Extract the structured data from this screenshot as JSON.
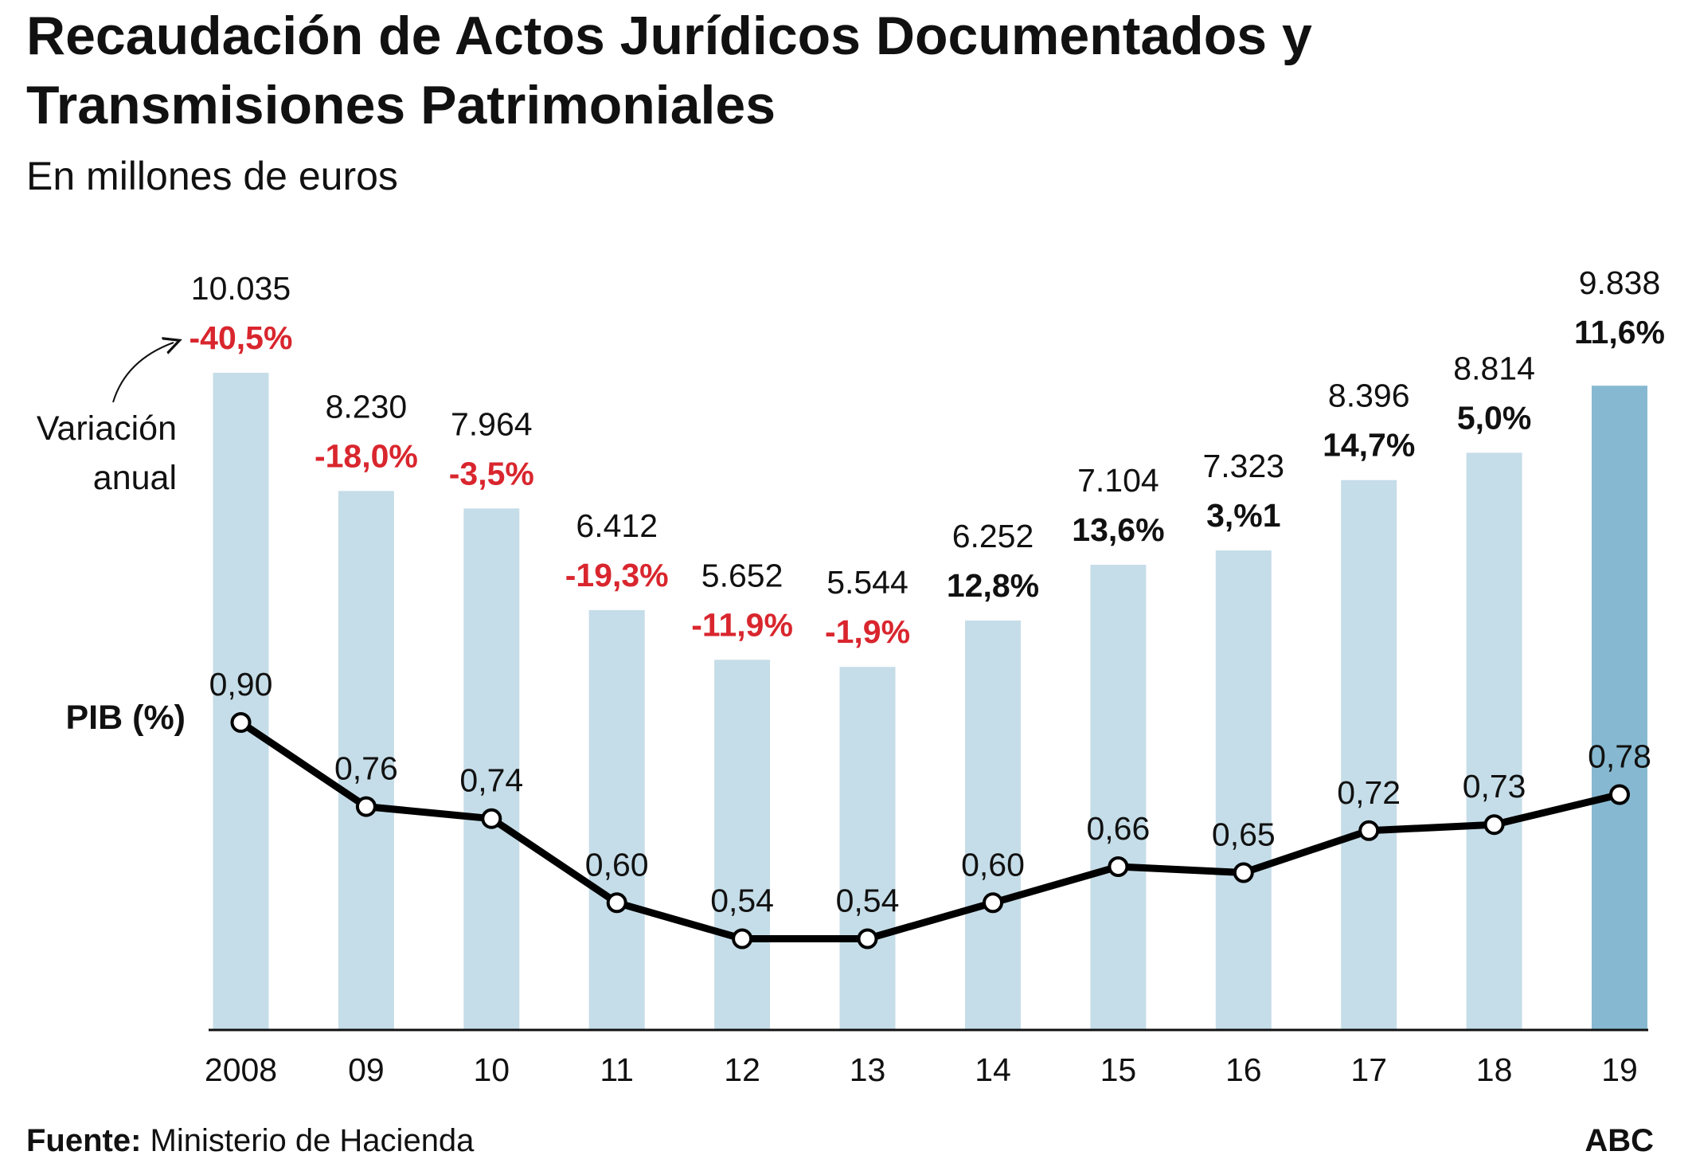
{
  "colors": {
    "bar": "#c5dde8",
    "bar_highlight": "#86b9d1",
    "negative": "#d9262e",
    "positive": "#111111",
    "line": "#000000",
    "marker_fill": "#ffffff"
  },
  "chart_data": {
    "type": "bar",
    "title_line1": "Recaudación de Actos Jurídicos Documentados y",
    "title_line2": "Transmisiones Patrimoniales",
    "subtitle": "En millones de euros",
    "categories": [
      "2008",
      "09",
      "10",
      "11",
      "12",
      "13",
      "14",
      "15",
      "16",
      "17",
      "18",
      "19"
    ],
    "series": [
      {
        "name": "Recaudación",
        "values": [
          10035,
          8230,
          7964,
          6412,
          5652,
          5544,
          6252,
          7104,
          7323,
          8396,
          8814,
          9838
        ],
        "labels": [
          "10.035",
          "8.230",
          "7.964",
          "6.412",
          "5.652",
          "5.544",
          "6.252",
          "7.104",
          "7.323",
          "8.396",
          "8.814",
          "9.838"
        ]
      },
      {
        "name": "Variación anual",
        "values": [
          -40.5,
          -18.0,
          -3.5,
          -19.3,
          -11.9,
          -1.9,
          12.8,
          13.6,
          3.1,
          14.7,
          5.0,
          11.6
        ],
        "labels": [
          "-40,5%",
          "-18,0%",
          "-3,5%",
          "-19,3%",
          "-11,9%",
          "-1,9%",
          "12,8%",
          "13,6%",
          "3,%1",
          "14,7%",
          "5,0%",
          "11,6%"
        ]
      },
      {
        "name": "PIB (%)",
        "type": "line",
        "values": [
          0.9,
          0.76,
          0.74,
          0.6,
          0.54,
          0.54,
          0.6,
          0.66,
          0.65,
          0.72,
          0.73,
          0.78
        ],
        "labels": [
          "0,90",
          "0,76",
          "0,74",
          "0,60",
          "0,54",
          "0,54",
          "0,60",
          "0,66",
          "0,65",
          "0,72",
          "0,73",
          "0,78"
        ]
      }
    ],
    "annotation_variacion_line1": "Variación",
    "annotation_variacion_line2": "anual",
    "pib_label": "PIB (%)",
    "highlight_index": 11,
    "grid": false,
    "legend": "none"
  },
  "footer": {
    "source_bold": "Fuente:",
    "source_text": " Ministerio de Hacienda",
    "brand": "ABC"
  }
}
